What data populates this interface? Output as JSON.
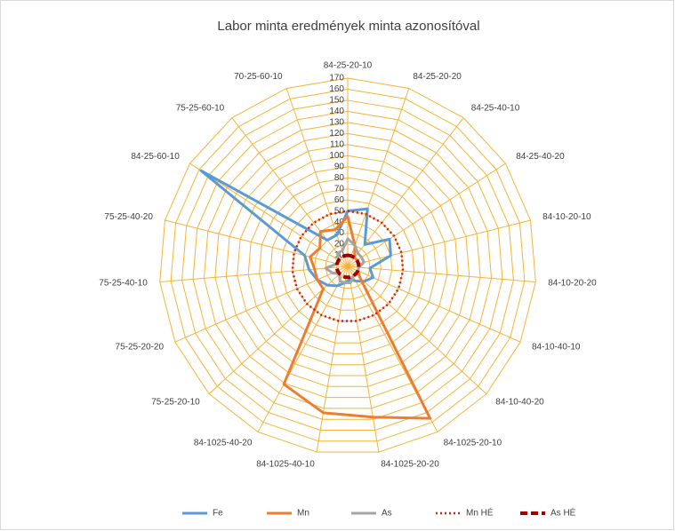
{
  "chart_data": {
    "type": "radar",
    "title": "Labor minta eredmények minta azonosítóval",
    "categories": [
      "84-25-20-10",
      "84-25-20-20",
      "84-25-40-10",
      "84-25-40-20",
      "84-10-20-10",
      "84-10-20-20",
      "84-10-40-10",
      "84-10-40-20",
      "84-1025-20-10",
      "84-1025-20-20",
      "84-1025-40-10",
      "84-1025-40-20",
      "75-25-20-10",
      "75-25-20-20",
      "75-25-40-10",
      "75-25-40-20",
      "84-25-60-10",
      "75-25-60-10",
      "70-25-60-10"
    ],
    "ylim": [
      0,
      170
    ],
    "yticks": [
      10,
      20,
      30,
      40,
      50,
      60,
      70,
      80,
      90,
      100,
      110,
      120,
      130,
      140,
      150,
      160,
      170
    ],
    "grid": true,
    "grid_color": "#f2b43c",
    "legend": "bottom",
    "series": [
      {
        "name": "Fe",
        "color": "#5b9bd5",
        "style": "solid",
        "values": [
          50,
          55,
          25,
          45,
          40,
          20,
          25,
          20,
          15,
          12,
          15,
          20,
          25,
          30,
          35,
          40,
          158,
          30,
          30
        ]
      },
      {
        "name": "Mn",
        "color": "#ed7d31",
        "style": "solid",
        "values": [
          45,
          20,
          10,
          10,
          10,
          10,
          10,
          15,
          156,
          138,
          134,
          121,
          30,
          30,
          30,
          35,
          30,
          40,
          35
        ]
      },
      {
        "name": "As",
        "color": "#a5a5a5",
        "style": "solid",
        "values": [
          25,
          20,
          15,
          15,
          15,
          10,
          10,
          10,
          10,
          15,
          15,
          15,
          10,
          15,
          20,
          10,
          10,
          15,
          15
        ]
      },
      {
        "name": "Mn HÉ",
        "color": "#d0201c",
        "style": "dotted",
        "values": [
          50,
          50,
          50,
          50,
          50,
          50,
          50,
          50,
          50,
          50,
          50,
          50,
          50,
          50,
          50,
          50,
          50,
          50,
          50
        ]
      },
      {
        "name": "As HÉ",
        "color": "#a00000",
        "style": "dashed",
        "values": [
          10,
          10,
          10,
          10,
          10,
          10,
          10,
          10,
          10,
          10,
          10,
          10,
          10,
          10,
          10,
          10,
          10,
          10,
          10
        ]
      }
    ]
  }
}
